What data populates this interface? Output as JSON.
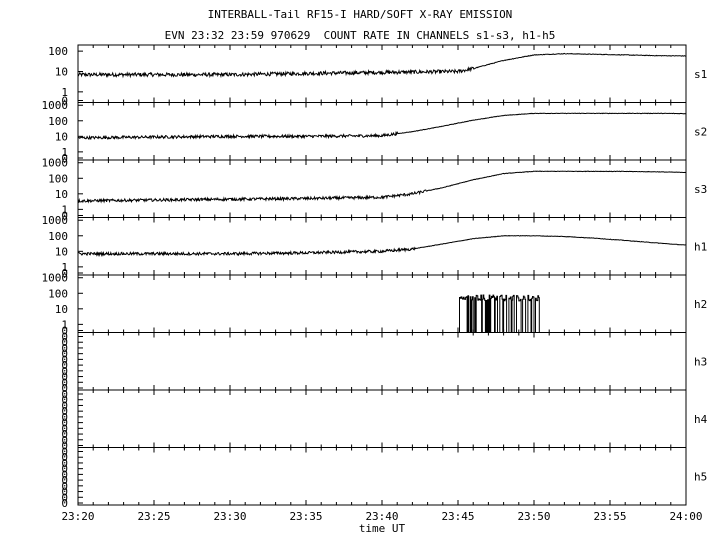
{
  "title": "INTERBALL-Tail RF15-I HARD/SOFT X-RAY EMISSION",
  "subtitle": "EVN 23:32 23:59 970629  COUNT RATE IN CHANNELS s1-s3, h1-h5",
  "xlabel": "time UT",
  "chart_data": {
    "type": "line",
    "title": "INTERBALL-Tail RF15-I HARD/SOFT X-RAY EMISSION",
    "subtitle": "EVN 23:32 23:59 970629  COUNT RATE IN CHANNELS s1-s3, h1-h5",
    "xlabel": "time UT",
    "x_ticks": [
      "23:20",
      "23:25",
      "23:30",
      "23:35",
      "23:40",
      "23:45",
      "23:50",
      "23:55",
      "24:00"
    ],
    "x_range_minutes": [
      0,
      40
    ],
    "y_scale": "log",
    "panels": [
      {
        "name": "s1",
        "yticks": [
          "100",
          "10",
          "1",
          "0"
        ],
        "ylim": [
          0.3,
          200
        ],
        "x_min": [
          0,
          5,
          10,
          15,
          20,
          25,
          26,
          28,
          30,
          32,
          34,
          36,
          38,
          40
        ],
        "values": [
          7,
          7,
          7,
          8,
          9,
          10,
          14,
          35,
          65,
          75,
          70,
          65,
          60,
          58
        ]
      },
      {
        "name": "s2",
        "yticks": [
          "1000",
          "100",
          "10",
          "1",
          "0"
        ],
        "ylim": [
          0.3,
          1500
        ],
        "x_min": [
          0,
          5,
          10,
          15,
          20,
          22,
          24,
          26,
          28,
          30,
          32,
          34,
          36,
          38,
          40
        ],
        "values": [
          8,
          9,
          10,
          10,
          11,
          20,
          45,
          110,
          220,
          300,
          300,
          300,
          300,
          300,
          290
        ]
      },
      {
        "name": "s3",
        "yticks": [
          "1000",
          "100",
          "10",
          "1",
          "0"
        ],
        "ylim": [
          0.3,
          1500
        ],
        "x_min": [
          0,
          5,
          10,
          15,
          20,
          22,
          24,
          26,
          28,
          30,
          32,
          34,
          36,
          38,
          40
        ],
        "values": [
          3.5,
          4,
          4.5,
          5,
          6,
          10,
          25,
          80,
          200,
          280,
          280,
          280,
          275,
          260,
          240
        ]
      },
      {
        "name": "h1",
        "yticks": [
          "1000",
          "100",
          "10",
          "1",
          "0"
        ],
        "ylim": [
          0.3,
          1500
        ],
        "x_min": [
          0,
          5,
          10,
          15,
          20,
          22,
          24,
          26,
          28,
          30,
          32,
          34,
          36,
          38,
          40
        ],
        "values": [
          7,
          7,
          7,
          8,
          10,
          14,
          30,
          65,
          100,
          100,
          90,
          70,
          50,
          35,
          25
        ]
      },
      {
        "name": "h2",
        "yticks": [
          "1000",
          "100",
          "10",
          "1",
          "0"
        ],
        "ylim": [
          0.3,
          1500
        ],
        "burst_start": 25.1,
        "burst_end": 30.4,
        "burst_level": 50,
        "values": []
      },
      {
        "name": "h3",
        "yticks": [
          "0",
          "0",
          "0",
          "0",
          "0",
          "0",
          "0",
          "0",
          "0",
          "0"
        ],
        "values": []
      },
      {
        "name": "h4",
        "yticks": [
          "0",
          "0",
          "0",
          "0",
          "0",
          "0",
          "0",
          "0",
          "0",
          "0"
        ],
        "values": []
      },
      {
        "name": "h5",
        "yticks": [
          "0",
          "0",
          "0",
          "0",
          "0",
          "0",
          "0",
          "0",
          "0",
          "0"
        ],
        "values": []
      }
    ]
  }
}
